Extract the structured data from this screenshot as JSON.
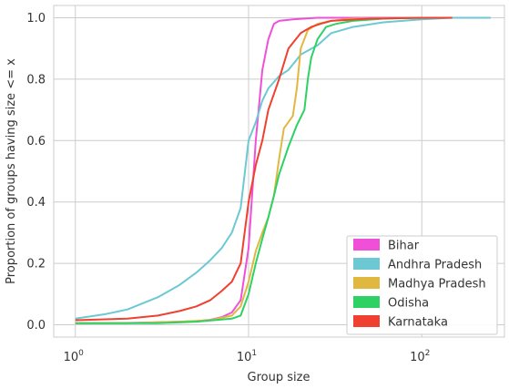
{
  "chart_data": {
    "type": "line",
    "title": "",
    "xlabel": "Group size",
    "ylabel": "Proportion of groups having size <= x",
    "x_scale": "log",
    "xlim": [
      0.75,
      300
    ],
    "ylim": [
      -0.04,
      1.04
    ],
    "x_ticks": [
      {
        "value": 1,
        "base": "10",
        "exp": "0"
      },
      {
        "value": 10,
        "base": "10",
        "exp": "1"
      },
      {
        "value": 100,
        "base": "10",
        "exp": "2"
      }
    ],
    "y_ticks": [
      {
        "value": 0.0,
        "label": "0.0"
      },
      {
        "value": 0.2,
        "label": "0.2"
      },
      {
        "value": 0.4,
        "label": "0.4"
      },
      {
        "value": 0.6,
        "label": "0.6"
      },
      {
        "value": 0.8,
        "label": "0.8"
      },
      {
        "value": 1.0,
        "label": "1.0"
      }
    ],
    "grid": true,
    "legend_position": "bottom-right",
    "series": [
      {
        "name": "Bihar",
        "color": "#f050d8",
        "points": [
          [
            1,
            0.005
          ],
          [
            2,
            0.006
          ],
          [
            3,
            0.008
          ],
          [
            4,
            0.01
          ],
          [
            5,
            0.012
          ],
          [
            6,
            0.016
          ],
          [
            7,
            0.025
          ],
          [
            8,
            0.04
          ],
          [
            9,
            0.08
          ],
          [
            10,
            0.25
          ],
          [
            11,
            0.6
          ],
          [
            12,
            0.83
          ],
          [
            13,
            0.93
          ],
          [
            14,
            0.98
          ],
          [
            15,
            0.99
          ],
          [
            18,
            0.995
          ],
          [
            25,
            1.0
          ],
          [
            150,
            1.0
          ]
        ]
      },
      {
        "name": "Andhra Pradesh",
        "color": "#6cc9d3",
        "points": [
          [
            1,
            0.02
          ],
          [
            1.5,
            0.035
          ],
          [
            2,
            0.05
          ],
          [
            3,
            0.09
          ],
          [
            4,
            0.13
          ],
          [
            5,
            0.17
          ],
          [
            6,
            0.21
          ],
          [
            7,
            0.25
          ],
          [
            8,
            0.3
          ],
          [
            9,
            0.38
          ],
          [
            10,
            0.6
          ],
          [
            11,
            0.66
          ],
          [
            12,
            0.73
          ],
          [
            13,
            0.77
          ],
          [
            15,
            0.81
          ],
          [
            17,
            0.83
          ],
          [
            20,
            0.88
          ],
          [
            25,
            0.91
          ],
          [
            30,
            0.95
          ],
          [
            40,
            0.97
          ],
          [
            60,
            0.985
          ],
          [
            100,
            0.995
          ],
          [
            150,
            1.0
          ],
          [
            250,
            1.0
          ]
        ]
      },
      {
        "name": "Madhya Pradesh",
        "color": "#e0b840",
        "points": [
          [
            1,
            0.005
          ],
          [
            2,
            0.005
          ],
          [
            4,
            0.01
          ],
          [
            6,
            0.015
          ],
          [
            8,
            0.03
          ],
          [
            9,
            0.06
          ],
          [
            10,
            0.14
          ],
          [
            11,
            0.24
          ],
          [
            12,
            0.3
          ],
          [
            13,
            0.35
          ],
          [
            14,
            0.42
          ],
          [
            15,
            0.54
          ],
          [
            16,
            0.64
          ],
          [
            18,
            0.68
          ],
          [
            19,
            0.77
          ],
          [
            20,
            0.9
          ],
          [
            22,
            0.96
          ],
          [
            25,
            0.98
          ],
          [
            30,
            0.99
          ],
          [
            40,
            0.997
          ],
          [
            100,
            1.0
          ],
          [
            150,
            1.0
          ]
        ]
      },
      {
        "name": "Odisha",
        "color": "#2ed163",
        "points": [
          [
            1,
            0.005
          ],
          [
            3,
            0.005
          ],
          [
            5,
            0.01
          ],
          [
            8,
            0.02
          ],
          [
            9,
            0.03
          ],
          [
            10,
            0.1
          ],
          [
            11,
            0.2
          ],
          [
            12,
            0.28
          ],
          [
            13,
            0.35
          ],
          [
            14,
            0.42
          ],
          [
            15,
            0.49
          ],
          [
            17,
            0.58
          ],
          [
            19,
            0.65
          ],
          [
            21,
            0.7
          ],
          [
            22,
            0.8
          ],
          [
            23,
            0.87
          ],
          [
            25,
            0.93
          ],
          [
            28,
            0.97
          ],
          [
            32,
            0.98
          ],
          [
            40,
            0.99
          ],
          [
            60,
            0.997
          ],
          [
            100,
            1.0
          ],
          [
            150,
            1.0
          ]
        ]
      },
      {
        "name": "Karnataka",
        "color": "#f04030",
        "points": [
          [
            1,
            0.015
          ],
          [
            2,
            0.02
          ],
          [
            3,
            0.03
          ],
          [
            4,
            0.045
          ],
          [
            5,
            0.06
          ],
          [
            6,
            0.08
          ],
          [
            7,
            0.11
          ],
          [
            8,
            0.14
          ],
          [
            9,
            0.2
          ],
          [
            10,
            0.4
          ],
          [
            11,
            0.52
          ],
          [
            12,
            0.6
          ],
          [
            13,
            0.7
          ],
          [
            15,
            0.8
          ],
          [
            17,
            0.9
          ],
          [
            20,
            0.95
          ],
          [
            23,
            0.97
          ],
          [
            26,
            0.98
          ],
          [
            30,
            0.99
          ],
          [
            50,
            0.997
          ],
          [
            100,
            1.0
          ],
          [
            150,
            1.0
          ]
        ]
      }
    ]
  }
}
